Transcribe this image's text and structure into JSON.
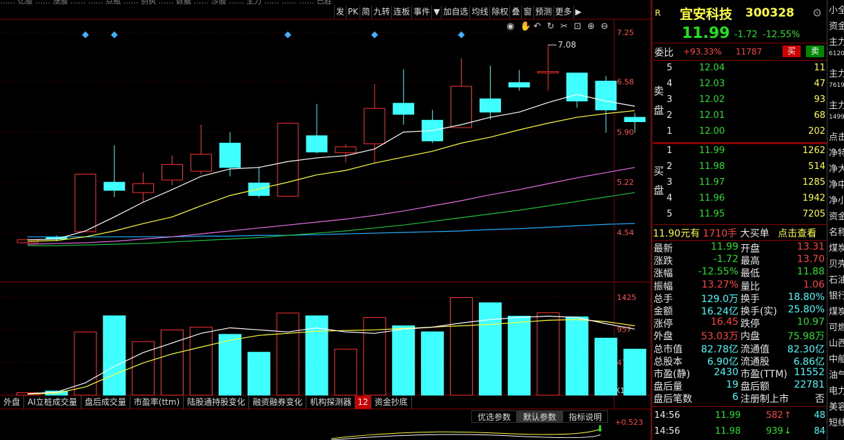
{
  "toolbar": [
    "发",
    "PK",
    "简",
    "九转",
    "连板",
    "事件",
    "▼",
    "加自选",
    "均线",
    "除权",
    "叠",
    "窗",
    "预测",
    "更多",
    "▶"
  ],
  "top_strip": "…… 亿股 …… 涨股 …… …… 点瓶 …… 别执 …… 数据 …… 涉股 …… 主力 …… …… …… 已胜 …… 顾弃 ……",
  "chart_icons": [
    "eye-icon",
    "hand-icon",
    "undo-icon",
    "rotate-icon",
    "scissors-icon",
    "zoom-fit-icon",
    "zoom-in-icon",
    "zoom-out-icon"
  ],
  "price_axis": [
    "7.25",
    "6.58",
    "5.90",
    "5.22",
    "4.54"
  ],
  "volume_axis": [
    "1425",
    "957",
    "478",
    "X1000"
  ],
  "peak_label": "7.08",
  "bottom_tabs": [
    "外盘",
    "AI立桩成交量",
    "盘后成交量",
    "市盈率(ttm)",
    "陆股通持股变化",
    "融资融券变化",
    "机构探测器",
    "12",
    "资金抄底"
  ],
  "sub_tabs": [
    "优选参数",
    "默认参数",
    "指标说明"
  ],
  "indicator_value": "+0.523",
  "stock": {
    "badge": "R",
    "name": "宜安科技",
    "code": "300328",
    "price": "11.99",
    "change": "-1.72",
    "pct": "-12.55%"
  },
  "weibi": {
    "label": "委比",
    "pct": "+93.33%",
    "diff": "11787",
    "buy": "买",
    "sell": "卖"
  },
  "sell_side": {
    "label": [
      "卖",
      "盘"
    ],
    "rows": [
      {
        "n": "5",
        "p": "12.04",
        "v": "11"
      },
      {
        "n": "4",
        "p": "12.03",
        "v": "47"
      },
      {
        "n": "3",
        "p": "12.02",
        "v": "93"
      },
      {
        "n": "2",
        "p": "12.01",
        "v": "68"
      },
      {
        "n": "1",
        "p": "12.00",
        "v": "202"
      }
    ]
  },
  "buy_side": {
    "label": [
      "买",
      "盘"
    ],
    "rows": [
      {
        "n": "1",
        "p": "11.99",
        "v": "1262"
      },
      {
        "n": "2",
        "p": "11.98",
        "v": "514"
      },
      {
        "n": "3",
        "p": "11.97",
        "v": "1285"
      },
      {
        "n": "4",
        "p": "11.96",
        "v": "1942"
      },
      {
        "n": "5",
        "p": "11.95",
        "v": "7205"
      }
    ]
  },
  "big_order": {
    "price": "11.90元有",
    "qty": "1710手",
    "text": "大买单",
    "action": "点击查看"
  },
  "stats": [
    [
      "最新",
      "11.99",
      "开盘",
      "13.31"
    ],
    [
      "涨跌",
      "-1.72",
      "最高",
      "13.70"
    ],
    [
      "涨幅",
      "-12.55%",
      "最低",
      "11.88"
    ],
    [
      "振幅",
      "13.27%",
      "量比",
      "1.06"
    ],
    [
      "总手",
      "129.0万",
      "换手",
      "18.80%"
    ],
    [
      "金额",
      "16.24亿",
      "换手(实)",
      "25.80%"
    ],
    [
      "涨停",
      "16.45",
      "跌停",
      "10.97"
    ],
    [
      "外盘",
      "53.03万",
      "内盘",
      "75.98万"
    ],
    [
      "总市值",
      "82.78亿",
      "流通值",
      "82.30亿"
    ],
    [
      "总股本",
      "6.90亿",
      "流通股",
      "6.86亿"
    ],
    [
      "市盈(静)",
      "2430",
      "市盈(TTM)",
      "11552"
    ],
    [
      "盘后量",
      "19",
      "盘后额",
      "22781"
    ],
    [
      "盘后笔数",
      "6",
      "注册制上市",
      "否"
    ]
  ],
  "ticks": [
    {
      "time": "14:56",
      "price": "11.99",
      "vol": "582",
      "dir": "up",
      "n": "48"
    },
    {
      "time": "14:56",
      "price": "11.98",
      "vol": "939",
      "dir": "down",
      "n": "84"
    }
  ],
  "far_right": [
    "小全",
    "资金",
    "主力",
    "6120",
    "主力",
    "7619",
    "主力",
    "1499",
    "点击",
    "净特",
    "净大",
    "净中",
    "净小",
    "资金",
    "名称",
    "煤炭",
    "贝壳",
    "石油",
    "银行",
    "煤炭",
    "可燃",
    "山西",
    "中船",
    "油气",
    "电力",
    "美容",
    "短线"
  ],
  "chart_data": {
    "type": "candlestick",
    "price_axis_ticks": [
      7.25,
      6.58,
      5.9,
      5.22,
      4.54
    ],
    "volume_axis_ticks": [
      1425,
      957,
      478
    ],
    "volume_unit": "X1000",
    "peak": 7.08,
    "candles": [
      {
        "o": 4.4,
        "c": 4.44,
        "h": 4.46,
        "l": 4.38,
        "v": 35
      },
      {
        "o": 4.48,
        "c": 4.45,
        "h": 4.5,
        "l": 4.42,
        "v": 60
      },
      {
        "o": 4.55,
        "c": 5.33,
        "h": 5.33,
        "l": 4.55,
        "v": 920
      },
      {
        "o": 5.22,
        "c": 5.11,
        "h": 5.72,
        "l": 5.02,
        "v": 1155
      },
      {
        "o": 5.08,
        "c": 5.2,
        "h": 5.35,
        "l": 4.95,
        "v": 780
      },
      {
        "o": 5.25,
        "c": 5.46,
        "h": 5.58,
        "l": 5.18,
        "v": 950
      },
      {
        "o": 5.37,
        "c": 5.6,
        "h": 6.0,
        "l": 5.33,
        "v": 990
      },
      {
        "o": 5.75,
        "c": 5.42,
        "h": 5.9,
        "l": 5.3,
        "v": 885
      },
      {
        "o": 5.21,
        "c": 5.04,
        "h": 5.43,
        "l": 5.01,
        "v": 625
      },
      {
        "o": 5.03,
        "c": 6.02,
        "h": 6.02,
        "l": 5.03,
        "v": 1195
      },
      {
        "o": 5.85,
        "c": 5.63,
        "h": 6.28,
        "l": 5.61,
        "v": 1155
      },
      {
        "o": 5.62,
        "c": 5.7,
        "h": 5.74,
        "l": 5.49,
        "v": 670
      },
      {
        "o": 5.74,
        "c": 6.22,
        "h": 6.55,
        "l": 5.48,
        "v": 1130
      },
      {
        "o": 6.29,
        "c": 6.14,
        "h": 6.75,
        "l": 6.0,
        "v": 1010
      },
      {
        "o": 6.06,
        "c": 5.78,
        "h": 6.2,
        "l": 5.75,
        "v": 922
      },
      {
        "o": 5.96,
        "c": 6.52,
        "h": 6.9,
        "l": 5.96,
        "v": 1420
      },
      {
        "o": 6.35,
        "c": 6.17,
        "h": 6.8,
        "l": 6.07,
        "v": 1345
      },
      {
        "o": 6.57,
        "c": 6.51,
        "h": 6.74,
        "l": 6.46,
        "v": 1150
      },
      {
        "o": 6.7,
        "c": 6.72,
        "h": 7.08,
        "l": 6.46,
        "v": 1200
      },
      {
        "o": 6.7,
        "c": 6.32,
        "h": 6.7,
        "l": 6.23,
        "v": 1140
      },
      {
        "o": 6.59,
        "c": 6.2,
        "h": 6.66,
        "l": 5.89,
        "v": 830
      },
      {
        "o": 6.1,
        "c": 6.04,
        "h": 6.16,
        "l": 5.89,
        "v": 670
      }
    ],
    "ma5": [
      4.44,
      4.45,
      4.56,
      4.75,
      4.95,
      5.12,
      5.3,
      5.4,
      5.42,
      5.5,
      5.55,
      5.58,
      5.67,
      5.9,
      5.92,
      6.0,
      6.1,
      6.17,
      6.3,
      6.41,
      6.32,
      6.25
    ],
    "ma10": [
      4.42,
      4.43,
      4.48,
      4.56,
      4.66,
      4.75,
      4.9,
      5.04,
      5.13,
      5.22,
      5.32,
      5.38,
      5.48,
      5.56,
      5.64,
      5.75,
      5.83,
      5.93,
      6.02,
      6.1,
      6.15,
      6.19
    ],
    "ma20": [
      4.38,
      4.39,
      4.4,
      4.42,
      4.45,
      4.48,
      4.52,
      4.56,
      4.6,
      4.64,
      4.68,
      4.72,
      4.77,
      4.83,
      4.9,
      4.97,
      5.05,
      5.12,
      5.2,
      5.28,
      5.35,
      5.42
    ],
    "ma30": [
      4.36,
      4.36,
      4.37,
      4.38,
      4.39,
      4.41,
      4.43,
      4.45,
      4.47,
      4.5,
      4.53,
      4.56,
      4.6,
      4.64,
      4.69,
      4.74,
      4.79,
      4.84,
      4.9,
      4.96,
      5.02,
      5.08
    ],
    "ma60": [
      4.48,
      4.48,
      4.48,
      4.48,
      4.48,
      4.48,
      4.49,
      4.49,
      4.5,
      4.5,
      4.51,
      4.52,
      4.53,
      4.54,
      4.55,
      4.56,
      4.58,
      4.59,
      4.61,
      4.63,
      4.65,
      4.66
    ],
    "vol_ma5": [
      20,
      45,
      180,
      420,
      620,
      760,
      900,
      980,
      950,
      920,
      980,
      920,
      900,
      960,
      990,
      1050,
      1100,
      1130,
      1150,
      1130,
      1040,
      960
    ],
    "vol_ma10": [
      15,
      30,
      120,
      300,
      470,
      600,
      700,
      800,
      870,
      900,
      930,
      940,
      950,
      970,
      990,
      1010,
      1030,
      1060,
      1090,
      1100,
      1070,
      1010
    ]
  }
}
